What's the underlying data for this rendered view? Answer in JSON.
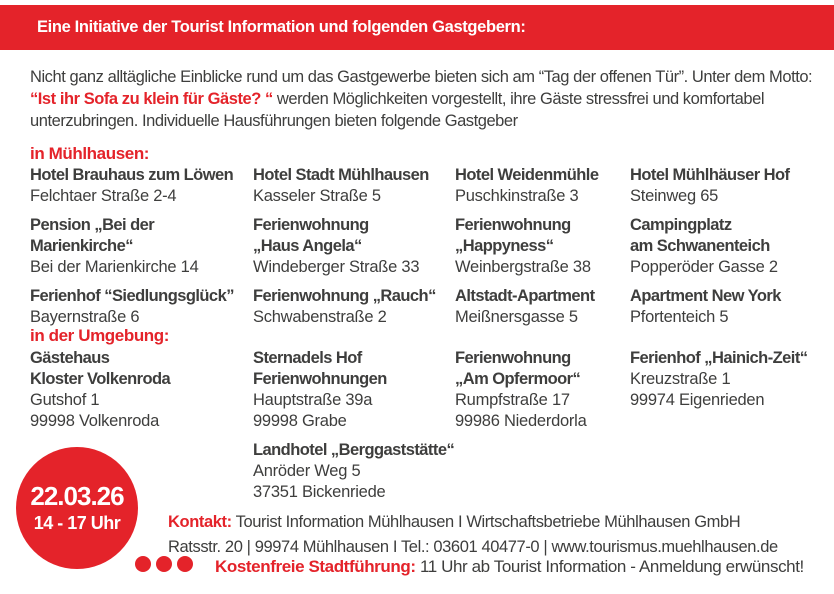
{
  "banner": {
    "text": "Eine Initiative der Tourist Information und folgenden Gastgebern:"
  },
  "intro": {
    "before": "Nicht ganz alltägliche Einblicke rund um das Gastgewerbe bieten sich am “Tag der offenen Tür”. Unter dem Motto: ",
    "motto": "“Ist ihr Sofa zu klein für Gäste? “",
    "after": " werden Möglichkeiten vorgestellt, ihre Gäste stressfrei und komfortabel unterzubringen. Individuelle Hausführungen bieten folgende Gastgeber"
  },
  "sections": {
    "muehlhausen": {
      "heading": "in Mühlhausen:",
      "entries": [
        {
          "name": "Hotel Brauhaus zum Löwen",
          "address": "Felchtaer Straße 2-4"
        },
        {
          "name": "Hotel Stadt Mühlhausen",
          "address": "Kasseler Straße 5"
        },
        {
          "name": "Hotel Weidenmühle",
          "address": "Puschkinstraße 3"
        },
        {
          "name": "Hotel Mühlhäuser Hof",
          "address": "Steinweg 65"
        },
        {
          "name": "Pension „Bei der\nMarienkirche“",
          "address": "Bei der Marienkirche 14"
        },
        {
          "name": "Ferienwohnung\n„Haus Angela“",
          "address": "Windeberger Straße 33"
        },
        {
          "name": "Ferienwohnung\n„Happyness“",
          "address": "Weinbergstraße 38"
        },
        {
          "name": "Campingplatz\nam Schwanenteich",
          "address": "Popperöder Gasse 2"
        },
        {
          "name": "Ferienhof “Siedlungsglück”",
          "address": "Bayernstraße 6"
        },
        {
          "name": "Ferienwohnung „Rauch“",
          "address": "Schwabenstraße 2"
        },
        {
          "name": "Altstadt-Apartment",
          "address": "Meißnersgasse 5"
        },
        {
          "name": "Apartment New York",
          "address": "Pfortenteich 5"
        }
      ]
    },
    "umgebung": {
      "heading": "in der Umgebung:",
      "entries": [
        {
          "name": "Gästehaus\nKloster Volkenroda",
          "address": "Gutshof 1\n99998 Volkenroda"
        },
        {
          "name": "Sternadels Hof\nFerienwohnungen",
          "address": "Hauptstraße 39a\n99998 Grabe"
        },
        {
          "name": "Ferienwohnung\n„Am Opfermoor“",
          "address": "Rumpfstraße 17\n99986 Niederdorla"
        },
        {
          "name": "Ferienhof „Hainich-Zeit“",
          "address": "Kreuzstraße 1\n99974 Eigenrieden"
        }
      ],
      "extra": {
        "name": "Landhotel „Berggaststätte“",
        "address": "Anröder Weg 5\n37351 Bickenriede"
      }
    }
  },
  "badge": {
    "date": "22.03.26",
    "time": "14 - 17 Uhr"
  },
  "contact": {
    "label": "Kontakt:",
    "line1": "Tourist Information Mühlhausen I Wirtschaftsbetriebe Mühlhausen GmbH",
    "line2": "Ratsstr. 20 | 99974 Mühlhausen I Tel.: 03601 40477-0 | www.tourismus.muehlhausen.de"
  },
  "footer": {
    "label": "Kostenfreie Stadtführung:",
    "text": "11 Uhr ab Tourist Information - Anmeldung erwünscht!"
  },
  "colors": {
    "accent_red": "#e4232a",
    "text_gray": "#3e3e3d"
  }
}
